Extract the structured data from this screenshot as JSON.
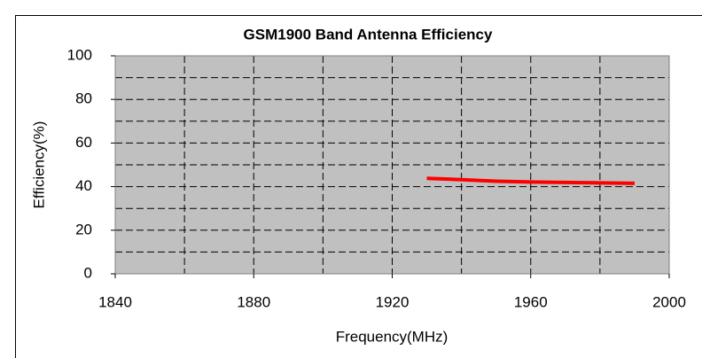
{
  "chart_data": {
    "type": "line",
    "title": "GSM1900 Band Antenna Efficiency",
    "xlabel": "Frequency(MHz)",
    "ylabel": "Efficiency(%)",
    "x": [
      1930,
      1940,
      1950,
      1960,
      1970,
      1980,
      1990
    ],
    "series": [
      {
        "name": "Efficiency",
        "color": "#ff0000",
        "values": [
          43.8,
          43.2,
          42.5,
          42.1,
          41.9,
          41.7,
          41.5
        ]
      }
    ],
    "xlim": [
      1840,
      2000
    ],
    "xticks": [
      1840,
      1880,
      1920,
      1960,
      2000
    ],
    "ylim": [
      0,
      100
    ],
    "yticks": [
      0,
      20,
      40,
      60,
      80,
      100
    ],
    "grid": true,
    "background": "#c0c0c0"
  }
}
